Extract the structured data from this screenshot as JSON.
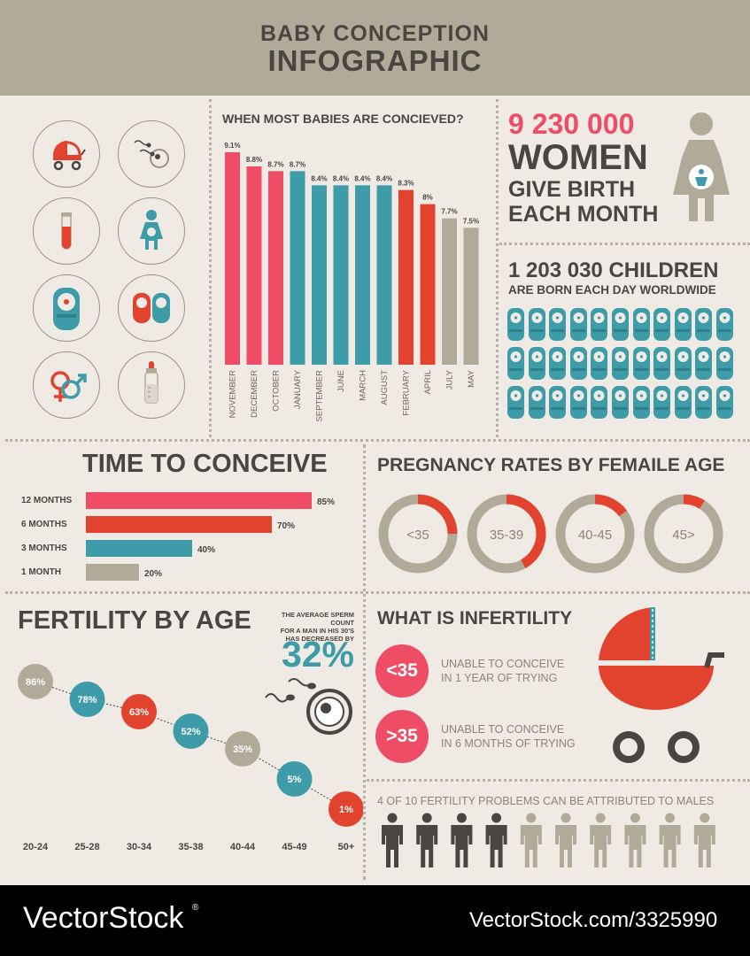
{
  "header": {
    "line1": "BABY CONCEPTION",
    "line2": "INFOGRAPHIC"
  },
  "icons": [
    "stroller-icon",
    "sperm-egg-icon",
    "test-tube-icon",
    "pregnant-woman-icon",
    "swaddled-baby-icon",
    "twin-babies-icon",
    "gender-symbols-icon",
    "baby-bottle-icon"
  ],
  "colors": {
    "pink": "#ef4d66",
    "red": "#e2432f",
    "teal": "#3d9ca7",
    "beige": "#b2aa99",
    "dark": "#4a4540",
    "bg": "#efebe4"
  },
  "months_chart": {
    "title": "WHEN MOST BABIES ARE CONCIEVED?"
  },
  "women": {
    "number": "9 230 000",
    "line1": "WOMEN",
    "line2": "GIVE BIRTH",
    "line3": "EACH MONTH"
  },
  "children": {
    "number_line": "1 203 030 CHILDREN",
    "sub": "ARE BORN EACH DAY WORLDWIDE"
  },
  "time_to_conceive": {
    "title": "TIME TO CONCEIVE"
  },
  "pregnancy": {
    "title": "PREGNANCY RATES BY FEMAILE AGE",
    "groups": [
      "<35",
      "35-39",
      "40-45",
      "45>"
    ]
  },
  "fertility": {
    "title": "FERTILITY BY AGE",
    "note_lines": [
      "THE AVERAGE SPERM COUNT",
      "FOR A MAN IN HIS 30'S",
      "HAS DECREASED BY"
    ],
    "note_value": "32%"
  },
  "infertility": {
    "title": "WHAT IS INFERTILITY",
    "items": [
      {
        "badge": "<35",
        "line1": "UNABLE TO CONCEIVE",
        "line2": "IN 1 YEAR OF TRYING"
      },
      {
        "badge": ">35",
        "line1": "UNABLE TO CONCEIVE",
        "line2": "IN 6 MONTHS OF TRYING"
      }
    ]
  },
  "males": {
    "text": "4 OF 10 FERTILITY PROBLEMS CAN BE ATTRIBUTED TO MALES",
    "dark_count": 4,
    "total": 10
  },
  "footer": {
    "left": "VectorStock",
    "reg": "®",
    "right": "VectorStock.com/3325990"
  },
  "chart_data": [
    {
      "type": "bar",
      "title": "WHEN MOST BABIES ARE CONCIEVED?",
      "categories": [
        "NOVEMBER",
        "DECEMBER",
        "OCTOBER",
        "JANUARY",
        "SEPTEMBER",
        "JUNE",
        "MARCH",
        "AUGUST",
        "FEBRUARY",
        "APRIL",
        "JULY",
        "MAY"
      ],
      "values": [
        9.1,
        8.8,
        8.7,
        8.7,
        8.4,
        8.4,
        8.4,
        8.4,
        8.3,
        8,
        7.7,
        7.5
      ],
      "labels": [
        "9.1%",
        "8.8%",
        "8.7%",
        "8.7%",
        "8.4%",
        "8.4%",
        "8.4%",
        "8.4%",
        "8.3%",
        "8%",
        "7.7%",
        "7.5%"
      ],
      "colors": [
        "#ef4d66",
        "#ef4d66",
        "#ef4d66",
        "#3d9ca7",
        "#3d9ca7",
        "#3d9ca7",
        "#3d9ca7",
        "#3d9ca7",
        "#e2432f",
        "#e2432f",
        "#b2aa99",
        "#b2aa99"
      ]
    },
    {
      "type": "bar",
      "orientation": "horizontal",
      "title": "TIME TO CONCEIVE",
      "categories": [
        "12 MONTHS",
        "6 MONTHS",
        "3 MONTHS",
        "1 MONTH"
      ],
      "values": [
        85,
        70,
        40,
        20
      ],
      "labels": [
        "85%",
        "70%",
        "40%",
        "20%"
      ],
      "colors": [
        "#ef4d66",
        "#e2432f",
        "#3d9ca7",
        "#b2aa99"
      ]
    },
    {
      "type": "pie",
      "title": "PREGNANCY RATES BY FEMAILE AGE",
      "categories": [
        "<35",
        "35-39",
        "40-45",
        "45>"
      ],
      "values": [
        0.25,
        0.42,
        0.15,
        0.09
      ]
    },
    {
      "type": "line",
      "title": "FERTILITY BY AGE",
      "categories": [
        "20-24",
        "25-28",
        "30-34",
        "35-38",
        "40-44",
        "45-49",
        "50+"
      ],
      "values": [
        86,
        78,
        63,
        52,
        35,
        5,
        1
      ],
      "labels": [
        "86%",
        "78%",
        "63%",
        "52%",
        "35%",
        "5%",
        "1%"
      ],
      "colors": [
        "#b2aa99",
        "#3d9ca7",
        "#e2432f",
        "#3d9ca7",
        "#b2aa99",
        "#3d9ca7",
        "#e2432f"
      ]
    }
  ]
}
